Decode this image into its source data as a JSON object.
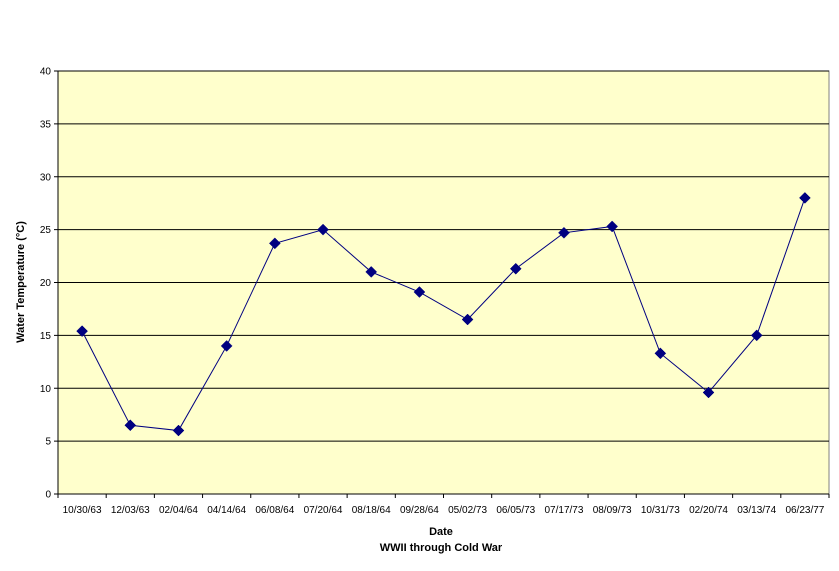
{
  "chart_data": {
    "type": "line",
    "title": "",
    "xlabel": "Date",
    "subtitle": "WWII through Cold War",
    "ylabel": "Water Temperature (°C)",
    "ylim": [
      0,
      40
    ],
    "yticks": [
      0,
      5,
      10,
      15,
      20,
      25,
      30,
      35,
      40
    ],
    "grid": true,
    "legend": "none",
    "plot_background": "#ffffcc",
    "series_color": "#000080",
    "marker": "diamond",
    "categories": [
      "10/30/63",
      "12/03/63",
      "02/04/64",
      "04/14/64",
      "06/08/64",
      "07/20/64",
      "08/18/64",
      "09/28/64",
      "05/02/73",
      "06/05/73",
      "07/17/73",
      "08/09/73",
      "10/31/73",
      "02/20/74",
      "03/13/74",
      "06/23/77"
    ],
    "series": [
      {
        "values": [
          15.4,
          6.5,
          6.0,
          14.0,
          23.7,
          25.0,
          21.0,
          19.1,
          16.5,
          21.3,
          24.7,
          25.3,
          13.3,
          9.6,
          15.0,
          28.0
        ]
      }
    ]
  }
}
